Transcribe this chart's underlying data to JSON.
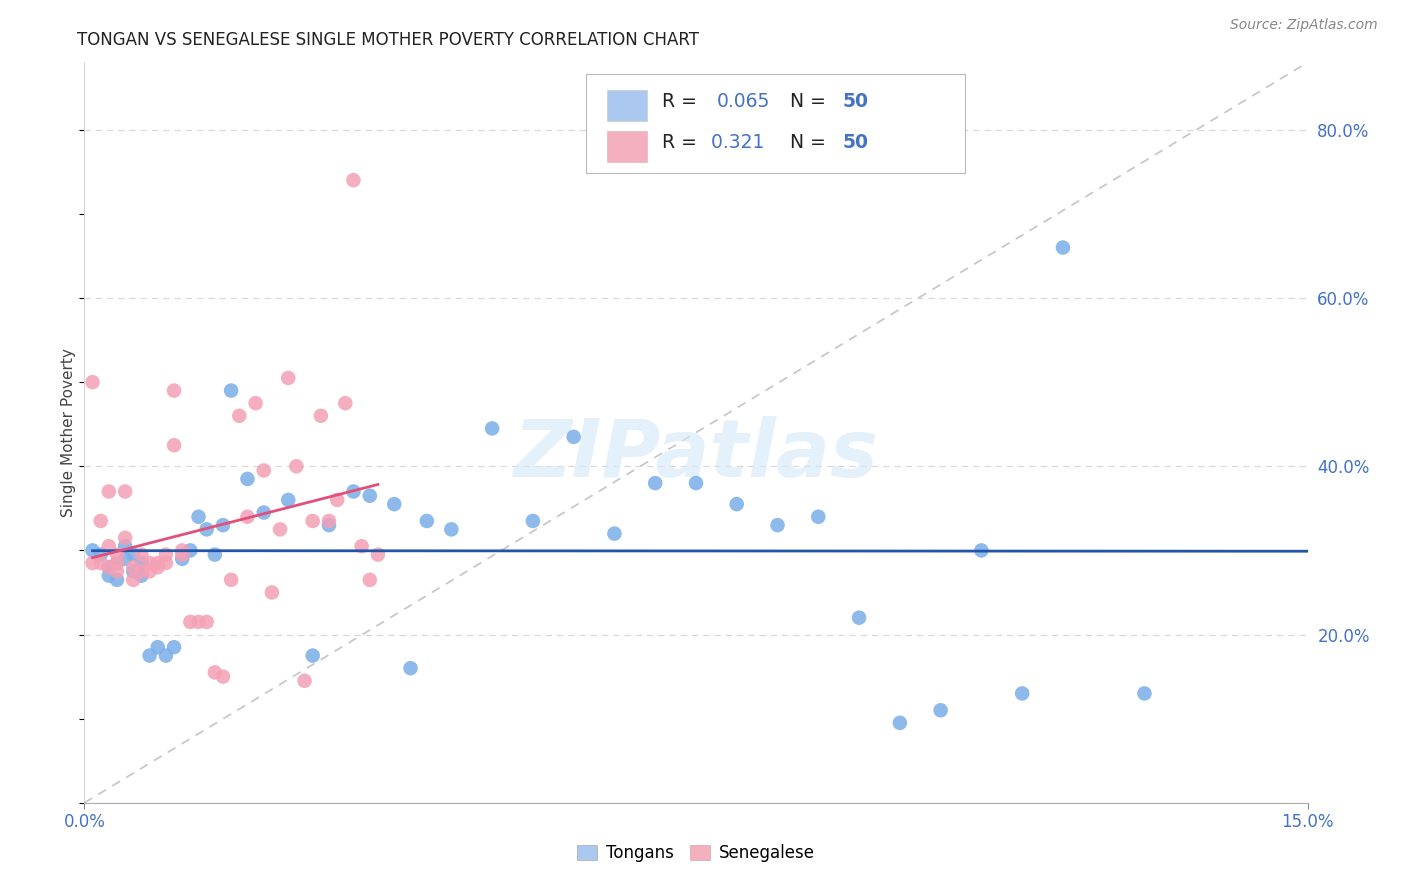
{
  "title": "TONGAN VS SENEGALESE SINGLE MOTHER POVERTY CORRELATION CHART",
  "source": "Source: ZipAtlas.com",
  "ylabel": "Single Mother Poverty",
  "yaxis_ticks": [
    0.2,
    0.4,
    0.6,
    0.8
  ],
  "yaxis_labels": [
    "20.0%",
    "40.0%",
    "60.0%",
    "80.0%"
  ],
  "xlim": [
    0.0,
    0.15
  ],
  "ylim": [
    0.0,
    0.88
  ],
  "tongans_color": "#7aaee8",
  "senegalese_color": "#f4a0b5",
  "trendline_tongans_color": "#2255aa",
  "trendline_senegalese_color": "#e0507a",
  "diagonal_color": "#c8c8c8",
  "watermark": "ZIPatlas",
  "tongans_x": [
    0.001,
    0.002,
    0.003,
    0.003,
    0.004,
    0.004,
    0.005,
    0.005,
    0.006,
    0.006,
    0.007,
    0.007,
    0.008,
    0.009,
    0.01,
    0.011,
    0.012,
    0.013,
    0.014,
    0.015,
    0.016,
    0.017,
    0.018,
    0.02,
    0.022,
    0.025,
    0.028,
    0.03,
    0.033,
    0.035,
    0.038,
    0.04,
    0.042,
    0.045,
    0.05,
    0.055,
    0.06,
    0.065,
    0.07,
    0.075,
    0.08,
    0.085,
    0.09,
    0.095,
    0.1,
    0.105,
    0.11,
    0.115,
    0.12,
    0.13
  ],
  "tongans_y": [
    0.3,
    0.295,
    0.28,
    0.27,
    0.285,
    0.265,
    0.29,
    0.305,
    0.275,
    0.295,
    0.285,
    0.27,
    0.175,
    0.185,
    0.175,
    0.185,
    0.29,
    0.3,
    0.34,
    0.325,
    0.295,
    0.33,
    0.49,
    0.385,
    0.345,
    0.36,
    0.175,
    0.33,
    0.37,
    0.365,
    0.355,
    0.16,
    0.335,
    0.325,
    0.445,
    0.335,
    0.435,
    0.32,
    0.38,
    0.38,
    0.355,
    0.33,
    0.34,
    0.22,
    0.095,
    0.11,
    0.3,
    0.13,
    0.66,
    0.13
  ],
  "senegalese_x": [
    0.001,
    0.001,
    0.002,
    0.002,
    0.003,
    0.003,
    0.003,
    0.004,
    0.004,
    0.004,
    0.005,
    0.005,
    0.006,
    0.006,
    0.007,
    0.007,
    0.008,
    0.008,
    0.009,
    0.009,
    0.01,
    0.01,
    0.011,
    0.011,
    0.012,
    0.012,
    0.013,
    0.014,
    0.015,
    0.016,
    0.017,
    0.018,
    0.019,
    0.02,
    0.021,
    0.022,
    0.023,
    0.024,
    0.025,
    0.026,
    0.027,
    0.028,
    0.029,
    0.03,
    0.031,
    0.032,
    0.033,
    0.034,
    0.035,
    0.036
  ],
  "senegalese_y": [
    0.285,
    0.5,
    0.285,
    0.335,
    0.37,
    0.305,
    0.28,
    0.295,
    0.285,
    0.275,
    0.37,
    0.315,
    0.28,
    0.265,
    0.275,
    0.295,
    0.285,
    0.275,
    0.285,
    0.28,
    0.295,
    0.285,
    0.425,
    0.49,
    0.295,
    0.3,
    0.215,
    0.215,
    0.215,
    0.155,
    0.15,
    0.265,
    0.46,
    0.34,
    0.475,
    0.395,
    0.25,
    0.325,
    0.505,
    0.4,
    0.145,
    0.335,
    0.46,
    0.335,
    0.36,
    0.475,
    0.74,
    0.305,
    0.265,
    0.295
  ],
  "grid_color": "#d8d8d8",
  "grid_linestyle": "--",
  "background_color": "#ffffff",
  "xtick_color": "#4472c4",
  "ytick_color": "#4472c4",
  "title_fontsize": 12,
  "source_fontsize": 10,
  "legend_r1": "R = 0.065   N = 50",
  "legend_r2": "R =  0.321   N = 50",
  "legend_color1": "#aac8f0",
  "legend_color2": "#f5b0c0"
}
